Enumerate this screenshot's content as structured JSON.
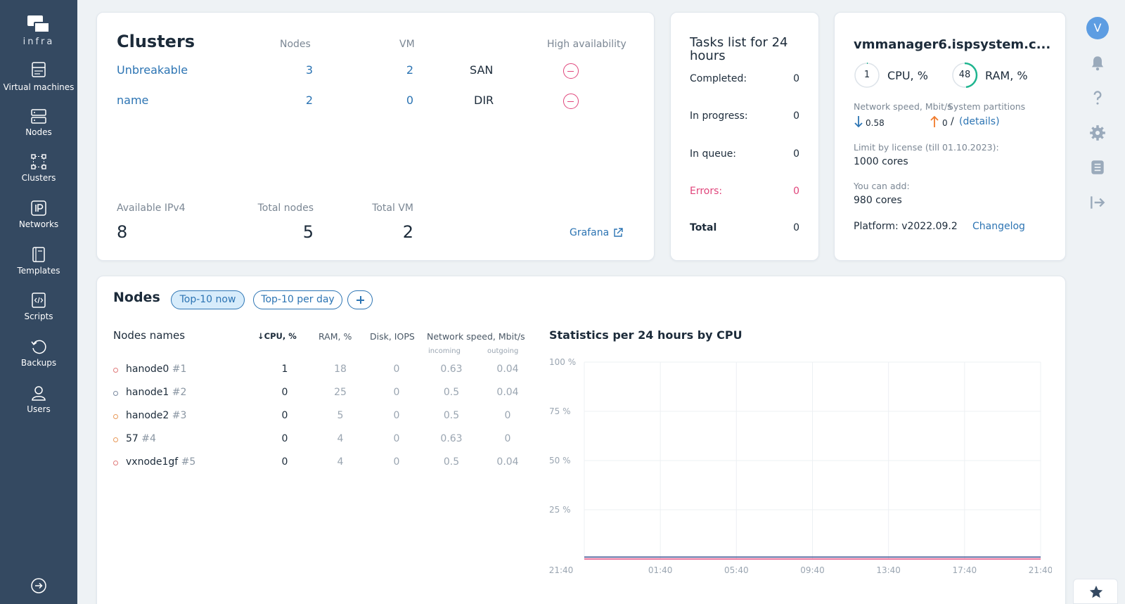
{
  "sidebar": {
    "logo_text": "infra",
    "items": [
      {
        "label": "Virtual machines",
        "icon": "virtual-machines-icon"
      },
      {
        "label": "Nodes",
        "icon": "nodes-icon"
      },
      {
        "label": "Clusters",
        "icon": "clusters-icon"
      },
      {
        "label": "Networks",
        "icon": "networks-icon"
      },
      {
        "label": "Templates",
        "icon": "templates-icon"
      },
      {
        "label": "Scripts",
        "icon": "scripts-icon"
      },
      {
        "label": "Backups",
        "icon": "backups-icon"
      },
      {
        "label": "Users",
        "icon": "users-icon"
      }
    ]
  },
  "clusters": {
    "title": "Clusters",
    "headers": {
      "nodes": "Nodes",
      "vm": "VM",
      "ha": "High availability"
    },
    "rows": [
      {
        "name": "Unbreakable",
        "nodes": "3",
        "vm": "2",
        "storage": "SAN"
      },
      {
        "name": "name",
        "nodes": "2",
        "vm": "0",
        "storage": "DIR"
      }
    ],
    "stats": {
      "ipv4_label": "Available IPv4",
      "ipv4_value": "8",
      "nodes_label": "Total nodes",
      "nodes_value": "5",
      "vm_label": "Total VM",
      "vm_value": "2"
    },
    "grafana_link": "Grafana"
  },
  "tasks": {
    "title": "Tasks list for 24 hours",
    "rows": [
      {
        "label": "Completed:",
        "value": "0"
      },
      {
        "label": "In progress:",
        "value": "0"
      },
      {
        "label": "In queue:",
        "value": "0"
      },
      {
        "label": "Errors:",
        "value": "0"
      },
      {
        "label": "Total",
        "value": "0"
      }
    ]
  },
  "server": {
    "hostname": "vmmanager6.ispsystem.c...",
    "cpu_value": "1",
    "cpu_label": "CPU, %",
    "ram_value": "48",
    "ram_label": "RAM, %",
    "network_label": "Network speed, Mbit/s",
    "partitions_label": "System partitions",
    "down_speed": "0.58",
    "up_speed": "0",
    "details_link": "(details)",
    "license_label": "Limit by license (till 01.10.2023):",
    "license_value": "1000 cores",
    "can_add_label": "You can add:",
    "can_add_value": "980 cores",
    "platform": "Platform: v2022.09.2",
    "changelog_link": "Changelog"
  },
  "rail": {
    "avatar_letter": "V"
  },
  "nodes": {
    "title": "Nodes",
    "tabs": [
      "Top-10 now",
      "Top-10 per day"
    ],
    "headers": {
      "name": "Nodes names",
      "cpu": "↓CPU, %",
      "ram": "RAM, %",
      "disk": "Disk, IOPS",
      "network": "Network speed, Mbit/s",
      "incoming": "incoming",
      "outgoing": "outgoing"
    },
    "rows": [
      {
        "name": "hanode0",
        "num": "#1",
        "cpu": "1",
        "ram": "18",
        "disk": "0",
        "incoming": "0.63",
        "outgoing": "0.04"
      },
      {
        "name": "hanode1",
        "num": "#2",
        "cpu": "0",
        "ram": "25",
        "disk": "0",
        "incoming": "0.5",
        "outgoing": "0.04"
      },
      {
        "name": "hanode2",
        "num": "#3",
        "cpu": "0",
        "ram": "5",
        "disk": "0",
        "incoming": "0.5",
        "outgoing": "0"
      },
      {
        "name": "57",
        "num": "#4",
        "cpu": "0",
        "ram": "4",
        "disk": "0",
        "incoming": "0.63",
        "outgoing": "0"
      },
      {
        "name": "vxnode1gf",
        "num": "#5",
        "cpu": "0",
        "ram": "4",
        "disk": "0",
        "incoming": "0.5",
        "outgoing": "0.04"
      }
    ],
    "chart_title": "Statistics per 24 hours by CPU"
  },
  "chart_data": {
    "type": "line",
    "title": "Statistics per 24 hours by CPU",
    "x": [
      "21:40",
      "01:40",
      "05:40",
      "09:40",
      "13:40",
      "17:40",
      "21:40"
    ],
    "y_ticks": [
      "100 %",
      "75 %",
      "50 %",
      "25 %"
    ],
    "ylim": [
      0,
      100
    ],
    "grid": true,
    "series": [
      {
        "color": "#3a4f8f",
        "values": [
          1,
          1,
          1,
          1,
          1,
          1,
          1
        ]
      },
      {
        "color": "#e0457b",
        "values": [
          0,
          0,
          0,
          0,
          0,
          0,
          0
        ]
      }
    ]
  },
  "colors": {
    "sidebar": "#344961",
    "accent": "#2c74b3",
    "error": "#e0457b",
    "upload_arrow": "#f07b2c"
  }
}
